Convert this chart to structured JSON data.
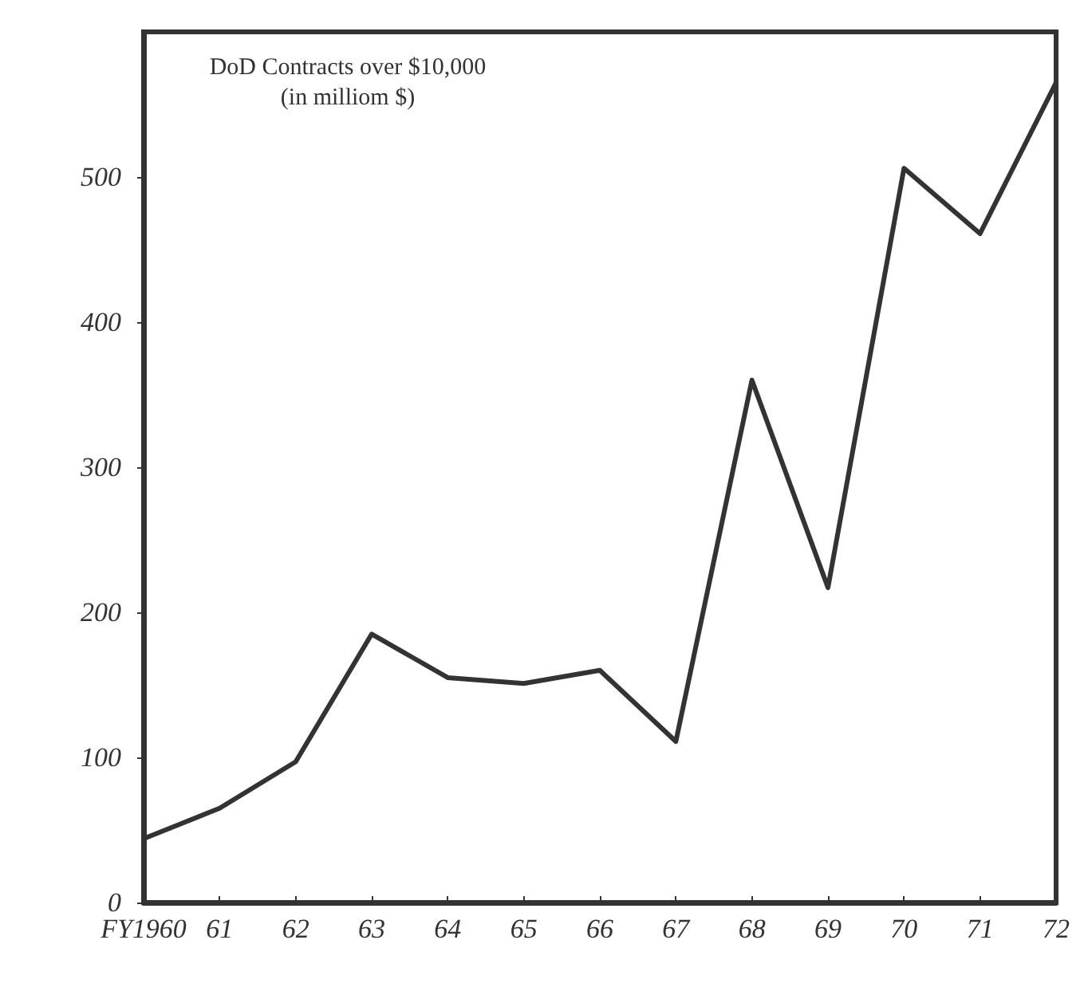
{
  "chart_data": {
    "type": "line",
    "title": "DoD Contracts over $10,000",
    "subtitle": "(in milliom $)",
    "categories": [
      "FY1960",
      "61",
      "62",
      "63",
      "64",
      "65",
      "66",
      "67",
      "68",
      "69",
      "70",
      "71",
      "72"
    ],
    "series": [
      {
        "color": "#333333",
        "values": [
          44,
          65,
          97,
          185,
          155,
          151,
          160,
          111,
          360,
          217,
          506,
          461,
          565
        ]
      }
    ],
    "ylim": [
      0,
      600
    ],
    "yticks": [
      0,
      100,
      200,
      300,
      400,
      500
    ],
    "grid": false,
    "marker": "none",
    "line_style": "solid"
  }
}
